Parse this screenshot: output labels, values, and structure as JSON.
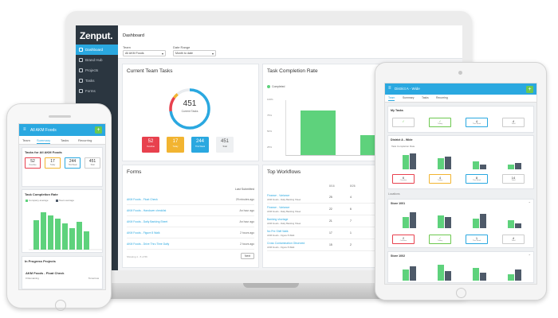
{
  "colors": {
    "brand": "#2aa8e0",
    "green": "#6cc84f",
    "sidebar": "#2b3640",
    "red": "#e8414e",
    "yellow": "#f2b431",
    "blue": "#2aa8e0",
    "gray": "#7a8791",
    "bar_green": "#5ed27c",
    "bar_dark": "#4e5a69"
  },
  "laptop": {
    "logo": "Zenput.",
    "sidebar": [
      {
        "icon": "dashboard-icon",
        "label": "Dashboard",
        "active": true
      },
      {
        "icon": "brand-hub-icon",
        "label": "Brand Hub"
      },
      {
        "icon": "projects-icon",
        "label": "Projects"
      },
      {
        "icon": "tasks-icon",
        "label": "Tasks"
      },
      {
        "icon": "forms-icon",
        "label": "Forms"
      }
    ],
    "header": {
      "title": "Dashboard",
      "team_label": "Team",
      "team_value": "All AKM Foods",
      "date_label": "Date Range",
      "date_value": "Month to date"
    },
    "team_tasks": {
      "title": "Current Team Tasks",
      "total": "451",
      "total_label": "Current Tasks",
      "stats": [
        {
          "n": "52",
          "label": "Overdue",
          "color": "#e8414e"
        },
        {
          "n": "17",
          "label": "Today",
          "color": "#f2b431"
        },
        {
          "n": "244",
          "label": "This Week",
          "color": "#2aa8e0"
        },
        {
          "n": "451",
          "label": "Total",
          "color": "#7a8791"
        }
      ]
    },
    "completion": {
      "title": "Task Completion Rate",
      "legend": "Completed",
      "yticks": [
        "100%",
        "75%",
        "50%",
        "25%",
        "0%"
      ]
    },
    "forms": {
      "title": "Forms",
      "col_header": "Last Submitted",
      "rows": [
        {
          "name": "AKM Foods - Float Check",
          "time": "29 minutes ago"
        },
        {
          "name": "AKM Foods - Handover checklist",
          "time": "An hour ago"
        },
        {
          "name": "AKM Foods - Daily Banking Sheet",
          "time": "An hour ago"
        },
        {
          "name": "AKM Foods - Figure 8 Walk",
          "time": "2 hours ago"
        },
        {
          "name": "AKM Foods - Drive Thru Time Daily",
          "time": "2 hours ago"
        }
      ],
      "pager": "Showing 1 - 5 of 56",
      "next": "Next"
    },
    "workflows": {
      "title": "Top Workflows",
      "col1": "8/16",
      "col2": "8/26",
      "rows": [
        {
          "title": "Finance - Variance",
          "sub": "AKM Foods - Daily Banking Sheet",
          "c1": "25",
          "c2": "4"
        },
        {
          "title": "Finance - Variance",
          "sub": "AKM Foods - Daily Banking Sheet",
          "c1": "22",
          "c2": "6"
        },
        {
          "title": "Banking shortage",
          "sub": "AKM Foods - Daily Banking Sheet",
          "c1": "21",
          "c2": "7"
        },
        {
          "title": "No Pre Shift Walk",
          "sub": "AKM Foods - Figure 8 Walk",
          "c1": "17",
          "c2": "1"
        },
        {
          "title": "Cross Contamination Observed",
          "sub": "AKM Foods - Figure 8 Walk",
          "c1": "15",
          "c2": "2"
        }
      ]
    }
  },
  "phone": {
    "title": "All AKM Foods",
    "tabs": [
      "Team",
      "Summary",
      "Tasks",
      "Recurring"
    ],
    "active_tab": "Summary",
    "tasks_title": "Tasks for All AKM Foods",
    "stats": [
      {
        "n": "52",
        "label": "Overdue",
        "color": "#e8414e"
      },
      {
        "n": "17",
        "label": "Today",
        "color": "#f2b431"
      },
      {
        "n": "244",
        "label": "This Week",
        "color": "#2aa8e0"
      },
      {
        "n": "451",
        "label": "Total",
        "color": "#aaaaaa"
      }
    ],
    "completion_title": "Task Completion Rate",
    "legend": [
      "Company average",
      "Team average"
    ],
    "in_progress_title": "In Progress Projects",
    "project_name": "AKM Foods - Float Check",
    "project_sub": "0 Remaining",
    "project_tag": "Tomorrow"
  },
  "tablet": {
    "title": "District A - Wide",
    "tabs": [
      "Team",
      "Summary",
      "Tasks",
      "Recurring"
    ],
    "active_tab": "Team",
    "my_tasks": "My Tasks",
    "my_stats": [
      {
        "n": "✓",
        "label": ""
      },
      {
        "n": "✓",
        "label": "Today"
      },
      {
        "n": "4",
        "label": "This Week"
      },
      {
        "n": "4",
        "label": "Total"
      }
    ],
    "district_title": "District A - Wide",
    "district_sub": "Task Completion Rate",
    "district_stats": [
      {
        "n": "6",
        "label": "Overdue",
        "color": "#e8414e"
      },
      {
        "n": "4",
        "label": "Today",
        "color": "#f2b431"
      },
      {
        "n": "8",
        "label": "This Week",
        "color": "#2aa8e0"
      },
      {
        "n": "14",
        "label": "Total",
        "color": "#aaaaaa"
      }
    ],
    "locations_label": "Locations",
    "store1": "Store 1001",
    "store1_stats": [
      {
        "n": "2",
        "label": "Overdue",
        "color": "#e8414e"
      },
      {
        "n": "✓",
        "label": "Today",
        "color": "#6cc84f"
      },
      {
        "n": "1",
        "label": "This Week",
        "color": "#2aa8e0"
      },
      {
        "n": "4",
        "label": "Total",
        "color": "#aaaaaa"
      }
    ],
    "store2": "Store 1002"
  }
}
